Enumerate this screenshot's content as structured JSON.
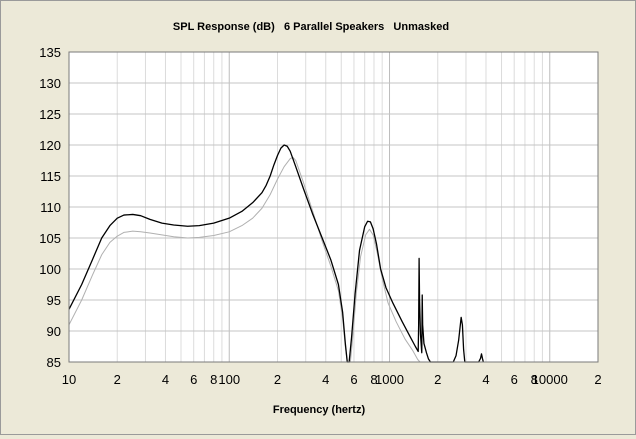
{
  "chart_data": {
    "type": "line",
    "title": "SPL Response (dB)   6 Parallel Speakers   Unmasked",
    "xlabel": "Frequency (hertz)",
    "ylabel": "",
    "x_scale": "log",
    "xlim": [
      10,
      20000
    ],
    "ylim": [
      85,
      135
    ],
    "x_tick_labels": [
      {
        "value": 10,
        "label": "10"
      },
      {
        "value": 20,
        "label": "2"
      },
      {
        "value": 40,
        "label": "4"
      },
      {
        "value": 60,
        "label": "6"
      },
      {
        "value": 80,
        "label": "8"
      },
      {
        "value": 100,
        "label": "100"
      },
      {
        "value": 200,
        "label": "2"
      },
      {
        "value": 400,
        "label": "4"
      },
      {
        "value": 600,
        "label": "6"
      },
      {
        "value": 800,
        "label": "8"
      },
      {
        "value": 1000,
        "label": "1000"
      },
      {
        "value": 2000,
        "label": "2"
      },
      {
        "value": 4000,
        "label": "4"
      },
      {
        "value": 6000,
        "label": "6"
      },
      {
        "value": 8000,
        "label": "8"
      },
      {
        "value": 10000,
        "label": "10000"
      },
      {
        "value": 20000,
        "label": "2"
      }
    ],
    "y_ticks": [
      85,
      90,
      95,
      100,
      105,
      110,
      115,
      120,
      125,
      130,
      135
    ],
    "grid": true,
    "series": [
      {
        "color": "#000000",
        "points": [
          [
            10,
            93.5
          ],
          [
            12,
            97.5
          ],
          [
            14,
            101.5
          ],
          [
            16,
            105
          ],
          [
            18,
            107
          ],
          [
            20,
            108.2
          ],
          [
            22,
            108.7
          ],
          [
            25,
            108.8
          ],
          [
            28,
            108.6
          ],
          [
            32,
            108
          ],
          [
            38,
            107.4
          ],
          [
            45,
            107.1
          ],
          [
            55,
            106.9
          ],
          [
            65,
            107
          ],
          [
            80,
            107.4
          ],
          [
            100,
            108.2
          ],
          [
            120,
            109.3
          ],
          [
            140,
            110.7
          ],
          [
            160,
            112.3
          ],
          [
            170,
            113.5
          ],
          [
            180,
            115
          ],
          [
            190,
            116.8
          ],
          [
            200,
            118.3
          ],
          [
            210,
            119.5
          ],
          [
            220,
            120
          ],
          [
            230,
            119.8
          ],
          [
            240,
            119
          ],
          [
            260,
            116.5
          ],
          [
            290,
            113
          ],
          [
            330,
            109
          ],
          [
            380,
            105
          ],
          [
            430,
            101.5
          ],
          [
            480,
            97.5
          ],
          [
            510,
            93
          ],
          [
            530,
            88
          ],
          [
            545,
            85
          ],
          [
            560,
            85
          ],
          [
            580,
            89
          ],
          [
            610,
            96
          ],
          [
            650,
            103
          ],
          [
            700,
            106.8
          ],
          [
            730,
            107.7
          ],
          [
            760,
            107.6
          ],
          [
            790,
            106.5
          ],
          [
            830,
            104
          ],
          [
            880,
            100
          ],
          [
            950,
            97
          ],
          [
            1050,
            94.5
          ],
          [
            1200,
            91.5
          ],
          [
            1350,
            89
          ],
          [
            1450,
            87.5
          ],
          [
            1510,
            86.7
          ],
          [
            1520,
            91
          ],
          [
            1530,
            101.7
          ],
          [
            1540,
            95
          ],
          [
            1560,
            89.5
          ],
          [
            1590,
            86.5
          ],
          [
            1600,
            95.8
          ],
          [
            1610,
            91
          ],
          [
            1640,
            88
          ],
          [
            1700,
            86.5
          ],
          [
            1750,
            85.5
          ],
          [
            1800,
            85
          ],
          [
            2500,
            85
          ],
          [
            2600,
            86
          ],
          [
            2700,
            88.5
          ],
          [
            2800,
            92.2
          ],
          [
            2850,
            91
          ],
          [
            2900,
            87
          ],
          [
            2950,
            85
          ],
          [
            3600,
            85
          ],
          [
            3700,
            85.6
          ],
          [
            3750,
            86.3
          ],
          [
            3800,
            85.6
          ],
          [
            3850,
            85
          ]
        ]
      },
      {
        "color": "#b0b0b0",
        "points": [
          [
            10,
            91
          ],
          [
            12,
            95
          ],
          [
            14,
            99
          ],
          [
            16,
            102.3
          ],
          [
            18,
            104.3
          ],
          [
            20,
            105.3
          ],
          [
            22,
            105.9
          ],
          [
            25,
            106.1
          ],
          [
            28,
            106
          ],
          [
            32,
            105.8
          ],
          [
            38,
            105.5
          ],
          [
            45,
            105.2
          ],
          [
            55,
            105
          ],
          [
            65,
            105.1
          ],
          [
            80,
            105.4
          ],
          [
            100,
            106
          ],
          [
            120,
            107
          ],
          [
            140,
            108.2
          ],
          [
            160,
            109.8
          ],
          [
            180,
            112
          ],
          [
            200,
            114.5
          ],
          [
            220,
            116.5
          ],
          [
            240,
            117.8
          ],
          [
            250,
            118
          ],
          [
            260,
            117.5
          ],
          [
            290,
            114
          ],
          [
            330,
            109.5
          ],
          [
            380,
            104.5
          ],
          [
            430,
            100.5
          ],
          [
            480,
            96.5
          ],
          [
            510,
            92
          ],
          [
            530,
            87.5
          ],
          [
            545,
            85
          ],
          [
            570,
            85
          ],
          [
            590,
            89
          ],
          [
            620,
            96
          ],
          [
            660,
            102
          ],
          [
            710,
            105.5
          ],
          [
            750,
            106.4
          ],
          [
            790,
            105.5
          ],
          [
            840,
            102.5
          ],
          [
            900,
            98.5
          ],
          [
            980,
            94.5
          ],
          [
            1100,
            91.5
          ],
          [
            1250,
            88.7
          ],
          [
            1400,
            86.8
          ],
          [
            1500,
            85.4
          ],
          [
            1550,
            85
          ]
        ]
      }
    ]
  }
}
